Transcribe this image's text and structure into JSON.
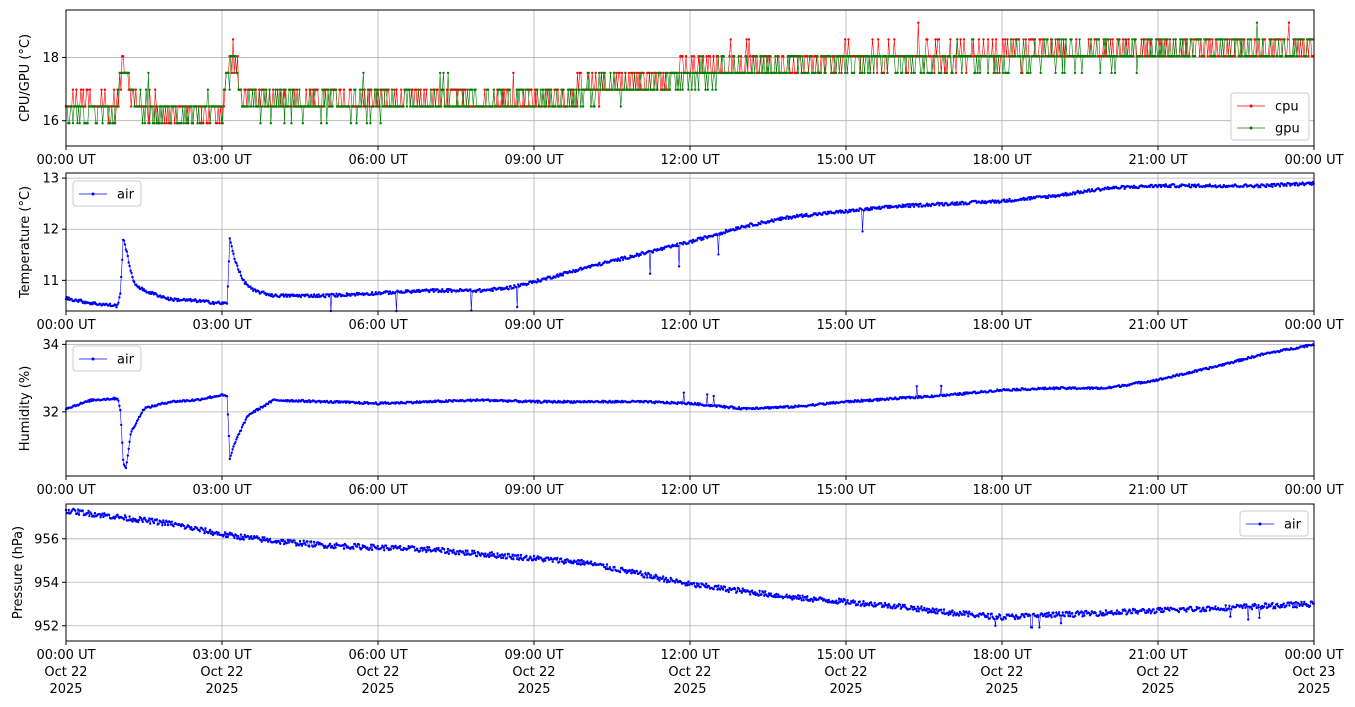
{
  "chart_data": [
    {
      "type": "line",
      "ylabel": "CPU/GPU (°C)",
      "ylim": [
        15.2,
        19.5
      ],
      "yticks": [
        16,
        18
      ],
      "x_range": [
        "2025-10-22 00:00",
        "2025-10-23 00:00"
      ],
      "xtick_labels": [
        "00:00 UT",
        "03:00 UT",
        "06:00 UT",
        "09:00 UT",
        "12:00 UT",
        "15:00 UT",
        "18:00 UT",
        "21:00 UT",
        "00:00 UT"
      ],
      "grid": true,
      "legend_position": "lower right",
      "series": [
        {
          "name": "cpu",
          "color": "#ff0000",
          "hours": [
            0,
            1,
            1.1,
            1.3,
            2,
            3,
            3.2,
            3.4,
            5,
            8,
            9.3,
            10,
            11,
            12,
            13,
            15,
            17,
            18,
            20,
            22,
            24
          ],
          "values": [
            16.5,
            16.5,
            18.1,
            16.5,
            16.3,
            16.3,
            18.2,
            16.6,
            16.6,
            16.6,
            16.7,
            17.0,
            17.2,
            17.5,
            17.7,
            17.9,
            18.0,
            18.1,
            18.2,
            18.3,
            18.3
          ]
        },
        {
          "name": "gpu",
          "color": "#008000",
          "hours": [
            0,
            1,
            1.1,
            1.3,
            2,
            3,
            3.2,
            3.4,
            5,
            8,
            9.3,
            10,
            11,
            12,
            13,
            15,
            17,
            18,
            20,
            22,
            24
          ],
          "values": [
            16.3,
            16.3,
            18.0,
            16.4,
            16.2,
            16.2,
            18.0,
            16.5,
            16.5,
            16.6,
            16.7,
            16.9,
            17.1,
            17.4,
            17.6,
            17.8,
            17.9,
            18.0,
            18.1,
            18.2,
            18.3
          ]
        }
      ]
    },
    {
      "type": "line",
      "ylabel": "Temperature (°C)",
      "ylim": [
        10.4,
        13.1
      ],
      "yticks": [
        11,
        12,
        13
      ],
      "x_range": [
        "2025-10-22 00:00",
        "2025-10-23 00:00"
      ],
      "xtick_labels": [
        "00:00 UT",
        "03:00 UT",
        "06:00 UT",
        "09:00 UT",
        "12:00 UT",
        "15:00 UT",
        "18:00 UT",
        "21:00 UT",
        "00:00 UT"
      ],
      "grid": true,
      "legend_position": "upper left",
      "series": [
        {
          "name": "air",
          "color": "#0000ff",
          "hours": [
            0,
            0.5,
            1.0,
            1.05,
            1.1,
            1.2,
            1.3,
            1.5,
            2.0,
            2.5,
            3.0,
            3.1,
            3.15,
            3.25,
            3.4,
            3.6,
            4.0,
            5.0,
            6.0,
            7.0,
            8.0,
            8.5,
            9.0,
            10.0,
            11.0,
            12.0,
            13.0,
            14.0,
            15.0,
            16.0,
            17.0,
            18.0,
            19.0,
            20.0,
            21.0,
            22.0,
            23.0,
            24.0
          ],
          "values": [
            10.65,
            10.55,
            10.5,
            10.8,
            11.85,
            11.4,
            10.95,
            10.8,
            10.63,
            10.6,
            10.55,
            10.55,
            11.8,
            11.4,
            11.0,
            10.8,
            10.7,
            10.7,
            10.75,
            10.8,
            10.8,
            10.85,
            10.97,
            11.25,
            11.5,
            11.75,
            12.05,
            12.25,
            12.35,
            12.45,
            12.5,
            12.55,
            12.65,
            12.8,
            12.85,
            12.85,
            12.85,
            12.9
          ]
        }
      ]
    },
    {
      "type": "line",
      "ylabel": "Humidity (%)",
      "ylim": [
        30.1,
        34.1
      ],
      "yticks": [
        32,
        34
      ],
      "x_range": [
        "2025-10-22 00:00",
        "2025-10-23 00:00"
      ],
      "xtick_labels": [
        "00:00 UT",
        "03:00 UT",
        "06:00 UT",
        "09:00 UT",
        "12:00 UT",
        "15:00 UT",
        "18:00 UT",
        "21:00 UT",
        "00:00 UT"
      ],
      "grid": true,
      "legend_position": "upper left",
      "series": [
        {
          "name": "air",
          "color": "#0000ff",
          "hours": [
            0,
            0.5,
            1.0,
            1.05,
            1.1,
            1.15,
            1.25,
            1.5,
            2.0,
            2.5,
            3.0,
            3.1,
            3.15,
            3.25,
            3.5,
            4.0,
            5.0,
            6.0,
            7.0,
            8.0,
            9.0,
            10.0,
            11.0,
            12.0,
            13.0,
            14.0,
            15.0,
            16.0,
            17.0,
            18.0,
            19.0,
            20.0,
            21.0,
            22.0,
            23.0,
            24.0
          ],
          "values": [
            32.1,
            32.35,
            32.4,
            32.0,
            30.5,
            30.3,
            31.4,
            32.1,
            32.3,
            32.35,
            32.5,
            32.45,
            30.6,
            31.1,
            31.9,
            32.35,
            32.3,
            32.25,
            32.3,
            32.35,
            32.3,
            32.3,
            32.3,
            32.25,
            32.1,
            32.15,
            32.3,
            32.4,
            32.5,
            32.65,
            32.7,
            32.7,
            32.95,
            33.3,
            33.7,
            34.0
          ]
        }
      ]
    },
    {
      "type": "line",
      "ylabel": "Pressure (hPa)",
      "ylim": [
        951.3,
        957.6
      ],
      "yticks": [
        952,
        954,
        956
      ],
      "x_range": [
        "2025-10-22 00:00",
        "2025-10-23 00:00"
      ],
      "xtick_labels": [
        "00:00 UT\nOct 22\n2025",
        "03:00 UT\nOct 22\n2025",
        "06:00 UT\nOct 22\n2025",
        "09:00 UT\nOct 22\n2025",
        "12:00 UT\nOct 22\n2025",
        "15:00 UT\nOct 22\n2025",
        "18:00 UT\nOct 22\n2025",
        "21:00 UT\nOct 22\n2025",
        "00:00 UT\nOct 23\n2025"
      ],
      "grid": true,
      "legend_position": "upper right",
      "series": [
        {
          "name": "air",
          "color": "#0000ff",
          "hours": [
            0,
            1,
            2,
            3,
            4,
            5,
            6,
            7,
            8,
            9,
            10,
            11,
            12,
            13,
            14,
            15,
            16,
            17,
            18,
            19,
            20,
            21,
            22,
            23,
            24
          ],
          "values": [
            957.3,
            957.0,
            956.7,
            956.2,
            955.9,
            955.7,
            955.6,
            955.5,
            955.3,
            955.1,
            954.9,
            954.4,
            953.9,
            953.6,
            953.3,
            953.1,
            952.9,
            952.6,
            952.4,
            952.5,
            952.6,
            952.7,
            952.8,
            952.9,
            953.0
          ]
        }
      ]
    }
  ]
}
